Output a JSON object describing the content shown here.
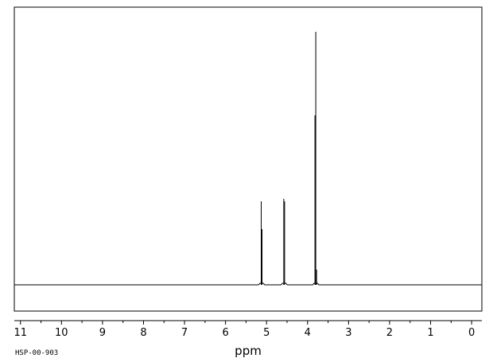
{
  "chart_data": {
    "type": "line",
    "xlabel": "ppm",
    "ylabel": "",
    "xlim": [
      11.15,
      -0.25
    ],
    "x_reversed": true,
    "ylim": [
      0,
      1
    ],
    "grid": false,
    "legend": "none",
    "x_ticks": [
      "11",
      "10",
      "9",
      "8",
      "7",
      "6",
      "5",
      "4",
      "3",
      "2",
      "1",
      "0"
    ],
    "x_tick_values": [
      11,
      10,
      9,
      8,
      7,
      6,
      5,
      4,
      3,
      2,
      1,
      0
    ],
    "peaks": [
      {
        "ppm": 5.13,
        "height": 0.33
      },
      {
        "ppm": 5.11,
        "height": 0.22
      },
      {
        "ppm": 4.58,
        "height": 0.34
      },
      {
        "ppm": 4.56,
        "height": 0.33
      },
      {
        "ppm": 3.82,
        "height": 0.67
      },
      {
        "ppm": 3.8,
        "height": 1.0
      },
      {
        "ppm": 3.78,
        "height": 0.06
      }
    ],
    "code": "HSP-00-903",
    "colors": {
      "line": "#000000",
      "frame": "#000000",
      "background": "#ffffff"
    }
  }
}
